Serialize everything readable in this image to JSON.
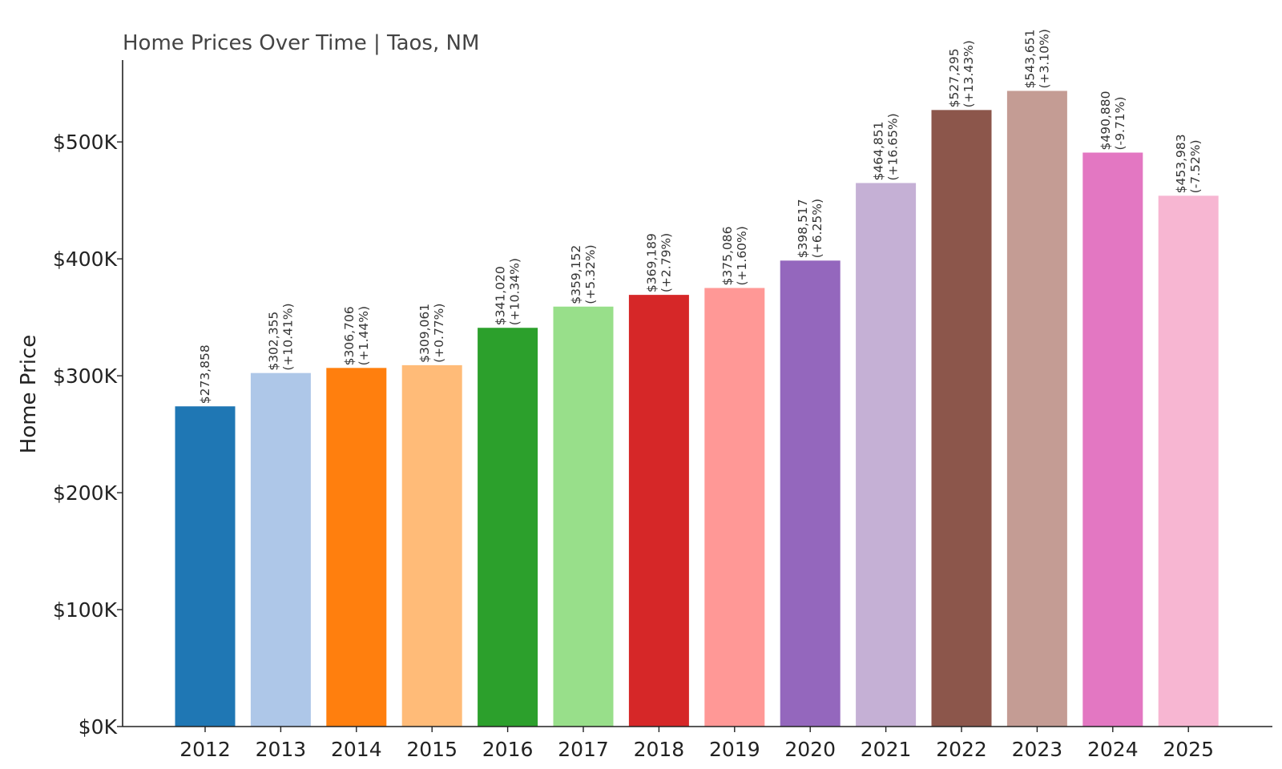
{
  "chart_data": {
    "type": "bar",
    "title": "Home Prices Over Time | Taos, NM",
    "xlabel": "",
    "ylabel": "Home Price",
    "ylim": [
      0,
      570000
    ],
    "yticks": [
      {
        "value": 0,
        "label": "$0K"
      },
      {
        "value": 100000,
        "label": "$100K"
      },
      {
        "value": 200000,
        "label": "$200K"
      },
      {
        "value": 300000,
        "label": "$300K"
      },
      {
        "value": 400000,
        "label": "$400K"
      },
      {
        "value": 500000,
        "label": "$500K"
      }
    ],
    "grid": false,
    "legend": "none",
    "categories": [
      "2012",
      "2013",
      "2014",
      "2015",
      "2016",
      "2017",
      "2018",
      "2019",
      "2020",
      "2021",
      "2022",
      "2023",
      "2024",
      "2025"
    ],
    "values": [
      273858,
      302355,
      306706,
      309061,
      341020,
      359152,
      369189,
      375086,
      398517,
      464851,
      527295,
      543651,
      490880,
      453983
    ],
    "value_labels": [
      "$273,858",
      "$302,355",
      "$306,706",
      "$309,061",
      "$341,020",
      "$359,152",
      "$369,189",
      "$375,086",
      "$398,517",
      "$464,851",
      "$527,295",
      "$543,651",
      "$490,880",
      "$453,983"
    ],
    "change_labels": [
      "",
      "(+10.41%)",
      "(+1.44%)",
      "(+0.77%)",
      "(+10.34%)",
      "(+5.32%)",
      "(+2.79%)",
      "(+1.60%)",
      "(+6.25%)",
      "(+16.65%)",
      "(+13.43%)",
      "(+3.10%)",
      "(-9.71%)",
      "(-7.52%)"
    ],
    "colors": [
      "#1f77b4",
      "#aec7e8",
      "#ff7f0e",
      "#ffbb78",
      "#2ca02c",
      "#98df8a",
      "#d62728",
      "#ff9896",
      "#9467bd",
      "#c5b0d5",
      "#8c564b",
      "#c49c94",
      "#e377c2",
      "#f7b6d2"
    ]
  }
}
